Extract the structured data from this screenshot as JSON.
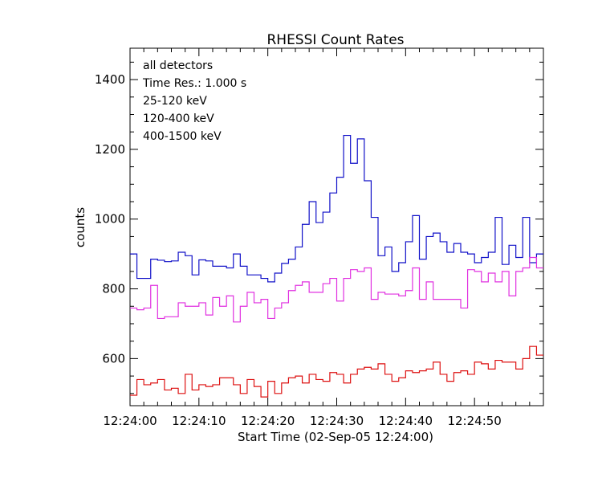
{
  "chart_data": {
    "type": "line",
    "title": "RHESSI Count Rates",
    "xlabel": "Start Time (02-Sep-05 12:24:00)",
    "ylabel": "counts",
    "xlim": [
      0,
      60
    ],
    "ylim": [
      465,
      1490
    ],
    "x_tick_labels": [
      "12:24:00",
      "12:24:10",
      "12:24:20",
      "12:24:30",
      "12:24:40",
      "12:24:50"
    ],
    "x_tick_values": [
      0,
      10,
      20,
      30,
      40,
      50
    ],
    "y_ticks": [
      600,
      800,
      1000,
      1200,
      1400
    ],
    "grid": false,
    "legend_position": "top-left",
    "annotations": [
      "all detectors",
      "Time Res.: 1.000 s"
    ],
    "series": [
      {
        "name": "25-120 keV",
        "color": "#1010c8",
        "values": [
          900,
          830,
          830,
          885,
          882,
          878,
          880,
          905,
          895,
          840,
          883,
          880,
          865,
          865,
          860,
          900,
          865,
          840,
          840,
          830,
          820,
          845,
          873,
          885,
          920,
          985,
          1050,
          990,
          1020,
          1075,
          1120,
          1240,
          1160,
          1230,
          1110,
          1005,
          895,
          920,
          850,
          875,
          935,
          1010,
          885,
          950,
          960,
          935,
          905,
          930,
          905,
          900,
          875,
          890,
          905,
          1005,
          870,
          925,
          890,
          1005,
          875,
          900
        ]
      },
      {
        "name": "120-400 keV",
        "color": "#e030e0",
        "values": [
          745,
          740,
          745,
          810,
          715,
          720,
          720,
          760,
          750,
          750,
          760,
          725,
          775,
          750,
          780,
          705,
          750,
          790,
          760,
          770,
          715,
          745,
          760,
          795,
          810,
          820,
          790,
          790,
          815,
          830,
          765,
          830,
          855,
          850,
          860,
          770,
          790,
          785,
          785,
          780,
          795,
          860,
          770,
          820,
          770,
          770,
          770,
          770,
          745,
          855,
          850,
          820,
          845,
          820,
          850,
          780,
          850,
          860,
          890,
          860
        ]
      },
      {
        "name": "400-1500 keV",
        "color": "#dd1010",
        "values": [
          495,
          540,
          525,
          530,
          540,
          510,
          515,
          500,
          555,
          510,
          525,
          520,
          525,
          545,
          545,
          525,
          500,
          540,
          520,
          490,
          535,
          500,
          530,
          545,
          550,
          530,
          555,
          540,
          535,
          560,
          555,
          530,
          555,
          570,
          575,
          570,
          585,
          555,
          535,
          545,
          565,
          560,
          565,
          570,
          590,
          555,
          535,
          560,
          565,
          555,
          590,
          585,
          570,
          595,
          590,
          590,
          570,
          600,
          635,
          610
        ]
      }
    ]
  }
}
